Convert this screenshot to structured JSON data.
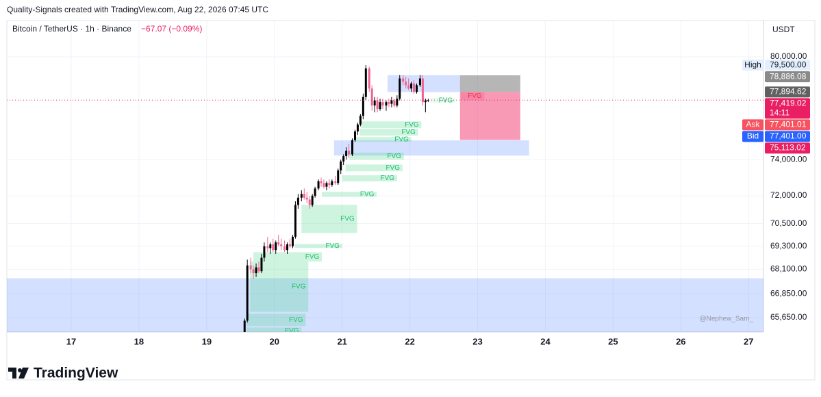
{
  "caption": "Quality-Signals created with TradingView.com, Aug 22, 2026 07:45 UTC",
  "brand": "TradingView",
  "chart_data": {
    "type": "candlestick",
    "title": "Bitcoin / TetherUS · 1h · Binance",
    "change_label": "−67.07 (−0.09%)",
    "currency": "USDT",
    "watermark": "@Nephew_Sam_",
    "log": true,
    "grid": true,
    "up_color": "#000000",
    "down_color": "#f06292",
    "xlim": [
      16.05,
      27.22
    ],
    "xticks": [
      17,
      18,
      19,
      20,
      21,
      22,
      23,
      24,
      25,
      26,
      27
    ],
    "ylim": [
      64940,
      82230
    ],
    "yticks": [
      {
        "value": 80000,
        "label": "80,000.00"
      },
      {
        "value": 74000,
        "label": "74,000.00"
      },
      {
        "value": 72000,
        "label": "72,000.00"
      },
      {
        "value": 70500,
        "label": "70,500.00"
      },
      {
        "value": 69300,
        "label": "69,300.00"
      },
      {
        "value": 68100,
        "label": "68,100.00"
      },
      {
        "value": 66850,
        "label": "66,850.00"
      },
      {
        "value": 65650,
        "label": "65,650.00"
      }
    ],
    "x": [
      19.56,
      19.6,
      19.65,
      19.69,
      19.73,
      19.77,
      19.81,
      19.85,
      19.9,
      19.94,
      19.98,
      20.02,
      20.06,
      20.1,
      20.15,
      20.19,
      20.23,
      20.27,
      20.31,
      20.35,
      20.4,
      20.44,
      20.48,
      20.52,
      20.56,
      20.6,
      20.65,
      20.69,
      20.73,
      20.77,
      20.81,
      20.85,
      20.9,
      20.94,
      20.98,
      21.02,
      21.06,
      21.1,
      21.15,
      21.19,
      21.23,
      21.27,
      21.31,
      21.35,
      21.4,
      21.44,
      21.48,
      21.52,
      21.56,
      21.6,
      21.65,
      21.69,
      21.73,
      21.77,
      21.81,
      21.85,
      21.9,
      21.94,
      21.98,
      22.02,
      22.06,
      22.1,
      22.15,
      22.19,
      22.23,
      22.27
    ],
    "open": [
      64800,
      65500,
      68300,
      68100,
      67900,
      68200,
      68000,
      68700,
      69300,
      69200,
      69400,
      69100,
      69500,
      69400,
      69300,
      69100,
      69400,
      69300,
      69800,
      71500,
      71900,
      72100,
      71900,
      71800,
      71500,
      72000,
      72400,
      72800,
      72700,
      72500,
      72700,
      72600,
      72800,
      72700,
      73400,
      73900,
      74200,
      74500,
      74300,
      75100,
      75600,
      76000,
      76500,
      77600,
      79300,
      78100,
      77100,
      77400,
      76900,
      77300,
      77100,
      77300,
      77200,
      77400,
      77100,
      77500,
      78700,
      78500,
      78300,
      78100,
      78400,
      77900,
      78300,
      78700,
      77300,
      77400
    ],
    "high": [
      65600,
      68600,
      68700,
      68300,
      68400,
      68500,
      68900,
      69500,
      69800,
      69500,
      69700,
      69600,
      69900,
      69700,
      69600,
      69500,
      69700,
      69900,
      71700,
      72100,
      72300,
      72400,
      72200,
      72000,
      72100,
      72500,
      72900,
      73000,
      72900,
      72800,
      72900,
      72900,
      73100,
      73500,
      74000,
      74300,
      74700,
      74900,
      75200,
      75700,
      76100,
      76600,
      77800,
      79500,
      79400,
      78300,
      77600,
      77600,
      77500,
      77500,
      77400,
      77500,
      77600,
      77500,
      77700,
      78900,
      78900,
      78800,
      78700,
      78500,
      78600,
      78400,
      78900,
      78900,
      77500,
      77500
    ],
    "low": [
      64700,
      65400,
      67900,
      67600,
      67700,
      67900,
      67900,
      68500,
      69000,
      68900,
      69000,
      68900,
      69300,
      69100,
      69000,
      68900,
      69200,
      69200,
      69700,
      71300,
      71700,
      71800,
      71600,
      71300,
      71400,
      71900,
      72300,
      72500,
      72400,
      72300,
      72400,
      72500,
      72600,
      72600,
      73200,
      73700,
      74000,
      74100,
      74200,
      75000,
      75400,
      75900,
      76300,
      77400,
      77900,
      76800,
      76700,
      76700,
      76800,
      76900,
      76800,
      77000,
      77000,
      77000,
      77000,
      77400,
      78300,
      78100,
      78000,
      77900,
      77800,
      77800,
      78200,
      77100,
      76700,
      77300
    ],
    "close": [
      65500,
      68300,
      68100,
      67900,
      68200,
      68000,
      68700,
      69300,
      69200,
      69400,
      69100,
      69500,
      69400,
      69300,
      69100,
      69400,
      69300,
      69800,
      71500,
      71900,
      72100,
      71900,
      71800,
      71500,
      72000,
      72400,
      72800,
      72700,
      72500,
      72700,
      72600,
      72800,
      72700,
      73400,
      73900,
      74200,
      74500,
      74300,
      75100,
      75600,
      76000,
      76500,
      77600,
      79300,
      78100,
      77100,
      77400,
      76900,
      77300,
      77100,
      77300,
      77200,
      77400,
      77100,
      77500,
      78700,
      78500,
      78300,
      78100,
      78400,
      77900,
      78300,
      78700,
      77300,
      77400,
      77419
    ],
    "zones": [
      {
        "x": [
          16.05,
          27.22
        ],
        "y": [
          67640,
          64000
        ],
        "color": "rgba(41,98,255,0.2)"
      },
      {
        "x": [
          20.88,
          23.76
        ],
        "y": [
          75090,
          74230
        ],
        "color": "rgba(41,98,255,0.2)"
      },
      {
        "x": [
          21.67,
          22.74
        ],
        "y": [
          78890,
          77890
        ],
        "color": "rgba(41,98,255,0.2)"
      },
      {
        "x": [
          22.74,
          23.63
        ],
        "y": [
          78886,
          77895
        ],
        "color": "rgba(110,110,110,0.5)"
      },
      {
        "x": [
          22.74,
          23.63
        ],
        "y": [
          77895,
          75113
        ],
        "color": "rgba(242,54,110,0.5)"
      },
      {
        "x": [
          22.75,
          23.1
        ],
        "y": [
          77890,
          77410
        ],
        "color": "rgba(242,54,110,0.2)",
        "label": "FVG",
        "label_color": "#f23645"
      },
      {
        "x": [
          22.3,
          22.67
        ],
        "y": [
          77540,
          77260
        ],
        "color": "rgba(60,210,130,0.12)",
        "label": "FVG",
        "label_color": "#1fbf6a"
      },
      {
        "x": [
          21.28,
          22.17
        ],
        "y": [
          76180,
          75790
        ],
        "color": "rgba(60,210,130,0.25)",
        "label": "FVG",
        "label_color": "#1fbf6a"
      },
      {
        "x": [
          21.26,
          22.12
        ],
        "y": [
          75750,
          75360
        ],
        "color": "rgba(60,210,130,0.25)",
        "label": "FVG",
        "label_color": "#1fbf6a"
      },
      {
        "x": [
          21.19,
          22.02
        ],
        "y": [
          75280,
          75010
        ],
        "color": "rgba(60,210,130,0.25)",
        "label": "FVG",
        "label_color": "#1fbf6a"
      },
      {
        "x": [
          21.11,
          21.91
        ],
        "y": [
          74390,
          74000
        ],
        "color": "rgba(60,210,130,0.25)",
        "label": "FVG",
        "label_color": "#1fbf6a"
      },
      {
        "x": [
          21.05,
          21.89
        ],
        "y": [
          73730,
          73350
        ],
        "color": "rgba(60,210,130,0.25)",
        "label": "FVG",
        "label_color": "#1fbf6a"
      },
      {
        "x": [
          21.0,
          21.81
        ],
        "y": [
          73130,
          72790
        ],
        "color": "rgba(60,210,130,0.25)",
        "label": "FVG",
        "label_color": "#1fbf6a"
      },
      {
        "x": [
          20.7,
          21.51
        ],
        "y": [
          72220,
          71950
        ],
        "color": "rgba(60,210,130,0.25)",
        "label": "FVG",
        "label_color": "#1fbf6a"
      },
      {
        "x": [
          20.4,
          21.22
        ],
        "y": [
          71510,
          70000
        ],
        "color": "rgba(60,210,130,0.25)",
        "label": "FVG",
        "label_color": "#1fbf6a"
      },
      {
        "x": [
          20.3,
          21.0
        ],
        "y": [
          69420,
          69210
        ],
        "color": "rgba(60,210,130,0.25)",
        "label": "FVG",
        "label_color": "#1fbf6a"
      },
      {
        "x": [
          19.69,
          20.7
        ],
        "y": [
          68990,
          68500
        ],
        "color": "rgba(60,210,130,0.25)",
        "label": "FVG",
        "label_color": "#1fbf6a"
      },
      {
        "x": [
          19.64,
          20.5
        ],
        "y": [
          68500,
          65940
        ],
        "color": "rgba(60,210,130,0.25)",
        "label": "FVG",
        "label_color": "#1fbf6a"
      },
      {
        "x": [
          19.59,
          20.46
        ],
        "y": [
          65840,
          65230
        ],
        "color": "rgba(60,210,130,0.25)",
        "label": "FVG",
        "label_color": "#1fbf6a"
      },
      {
        "x": [
          19.59,
          20.4
        ],
        "y": [
          65160,
          64820
        ],
        "color": "rgba(60,210,130,0.25)",
        "label": "FVG",
        "label_color": "#1fbf6a"
      }
    ],
    "current_price": 77419.02,
    "price_labels": [
      {
        "value": 79500,
        "label": "79,500.00",
        "tag": "High",
        "color": "#e3effd",
        "text_color": "#131722"
      },
      {
        "value": 78886.08,
        "label": "78,886.08",
        "color": "#8a8a8a",
        "text_color": "#ffffff"
      },
      {
        "value": 77894.62,
        "label": "77,894.62",
        "color": "#616161",
        "text_color": "#ffffff"
      },
      {
        "value": 77419.02,
        "label": "77,419.02",
        "countdown": "14:11",
        "color": "#e91e63",
        "text_color": "#ffffff"
      },
      {
        "value": 77401.01,
        "label": "77,401.01",
        "tag": "Ask",
        "color": "#f7525f",
        "text_color": "#ffffff"
      },
      {
        "value": 77401.0,
        "label": "77,401.00",
        "tag": "Bid",
        "color": "#2962ff",
        "text_color": "#ffffff"
      },
      {
        "value": 75113.02,
        "label": "75,113.02",
        "color": "#e91e63",
        "text_color": "#ffffff"
      }
    ]
  }
}
